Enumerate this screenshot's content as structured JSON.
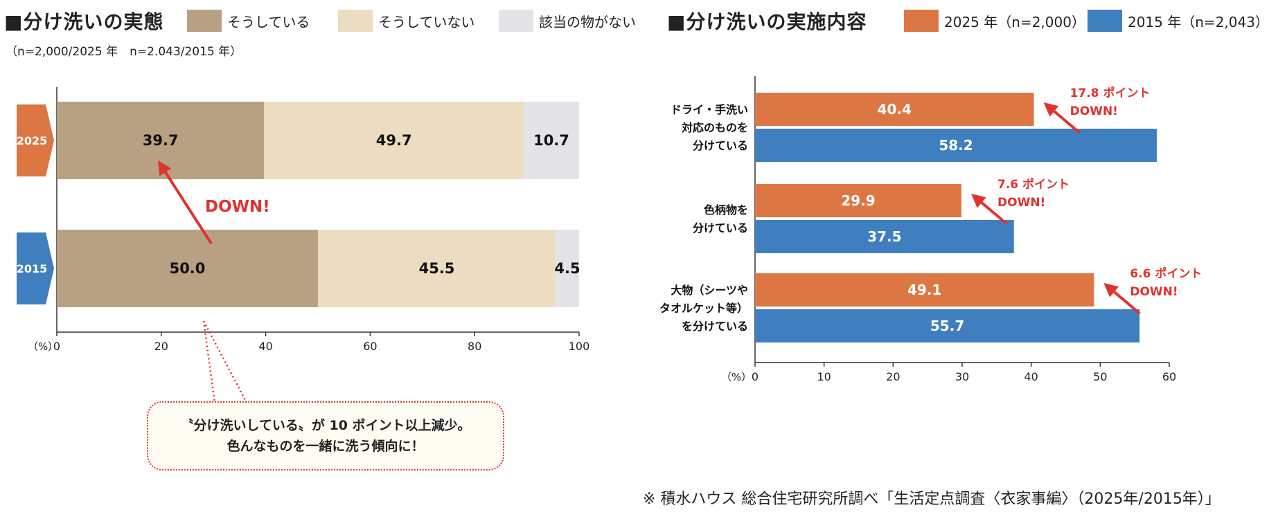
{
  "left": {
    "title": "■分け洗いの実態",
    "subtitle": "（n=2,000/2025 年　n=2.043/2015 年）",
    "legend": [
      {
        "label": "そうしている",
        "color": "#b8a083"
      },
      {
        "label": "そうしていない",
        "color": "#ecdcc2"
      },
      {
        "label": "該当の物がない",
        "color": "#e4e4e8"
      }
    ],
    "callout_line1": "〝分け洗いしている〟が 10 ポイント以上減少。",
    "callout_line2": "色んなものを一緒に洗う傾向に！"
  },
  "right": {
    "title": "■分け洗いの実施内容",
    "legend": [
      {
        "label": "2025 年（n=2,000）",
        "color": "#dc7744"
      },
      {
        "label": "2015 年（n=2,043）",
        "color": "#3f7fbf"
      }
    ]
  },
  "source_note": "※ 積水ハウス 総合住宅研究所調べ「生活定点調査〈衣家事編〉（2025年/2015年）」",
  "chart_data": [
    {
      "type": "bar",
      "stacked": true,
      "orientation": "horizontal",
      "categories": [
        "2025",
        "2015"
      ],
      "category_colors": [
        "#dc7744",
        "#3f7fbf"
      ],
      "series": [
        {
          "name": "そうしている",
          "values": [
            39.7,
            50.0
          ],
          "color": "#b8a083"
        },
        {
          "name": "そうしていない",
          "values": [
            49.7,
            45.5
          ],
          "color": "#ecdcc2"
        },
        {
          "name": "該当の物がない",
          "values": [
            10.7,
            4.5
          ],
          "color": "#e4e4e8"
        }
      ],
      "xlim": [
        0,
        100
      ],
      "xticks": [
        0,
        20,
        40,
        60,
        80,
        100
      ],
      "xlabel": "（%）",
      "annotations": [
        {
          "text": "DOWN!",
          "color": "#e0322f"
        }
      ]
    },
    {
      "type": "bar",
      "orientation": "horizontal",
      "categories": [
        [
          "ドライ・手洗い",
          "対応のものを",
          "分けている"
        ],
        [
          "色柄物を",
          "分けている"
        ],
        [
          "大物（シーツや",
          "タオルケット等）",
          "を分けている"
        ]
      ],
      "series": [
        {
          "name": "2025 年（n=2,000）",
          "values": [
            40.4,
            29.9,
            49.1
          ],
          "color": "#dc7744"
        },
        {
          "name": "2015 年（n=2,043）",
          "values": [
            58.2,
            37.5,
            55.7
          ],
          "color": "#3f7fbf"
        }
      ],
      "xlim": [
        0,
        60
      ],
      "xticks": [
        0,
        10,
        20,
        30,
        40,
        50,
        60
      ],
      "xlabel": "（%）",
      "annotations": [
        {
          "line1": "17.8 ポイント",
          "line2": "DOWN!",
          "color": "#e0322f"
        },
        {
          "line1": "7.6 ポイント",
          "line2": "DOWN!",
          "color": "#e0322f"
        },
        {
          "line1": "6.6 ポイント",
          "line2": "DOWN!",
          "color": "#e0322f"
        }
      ]
    }
  ]
}
